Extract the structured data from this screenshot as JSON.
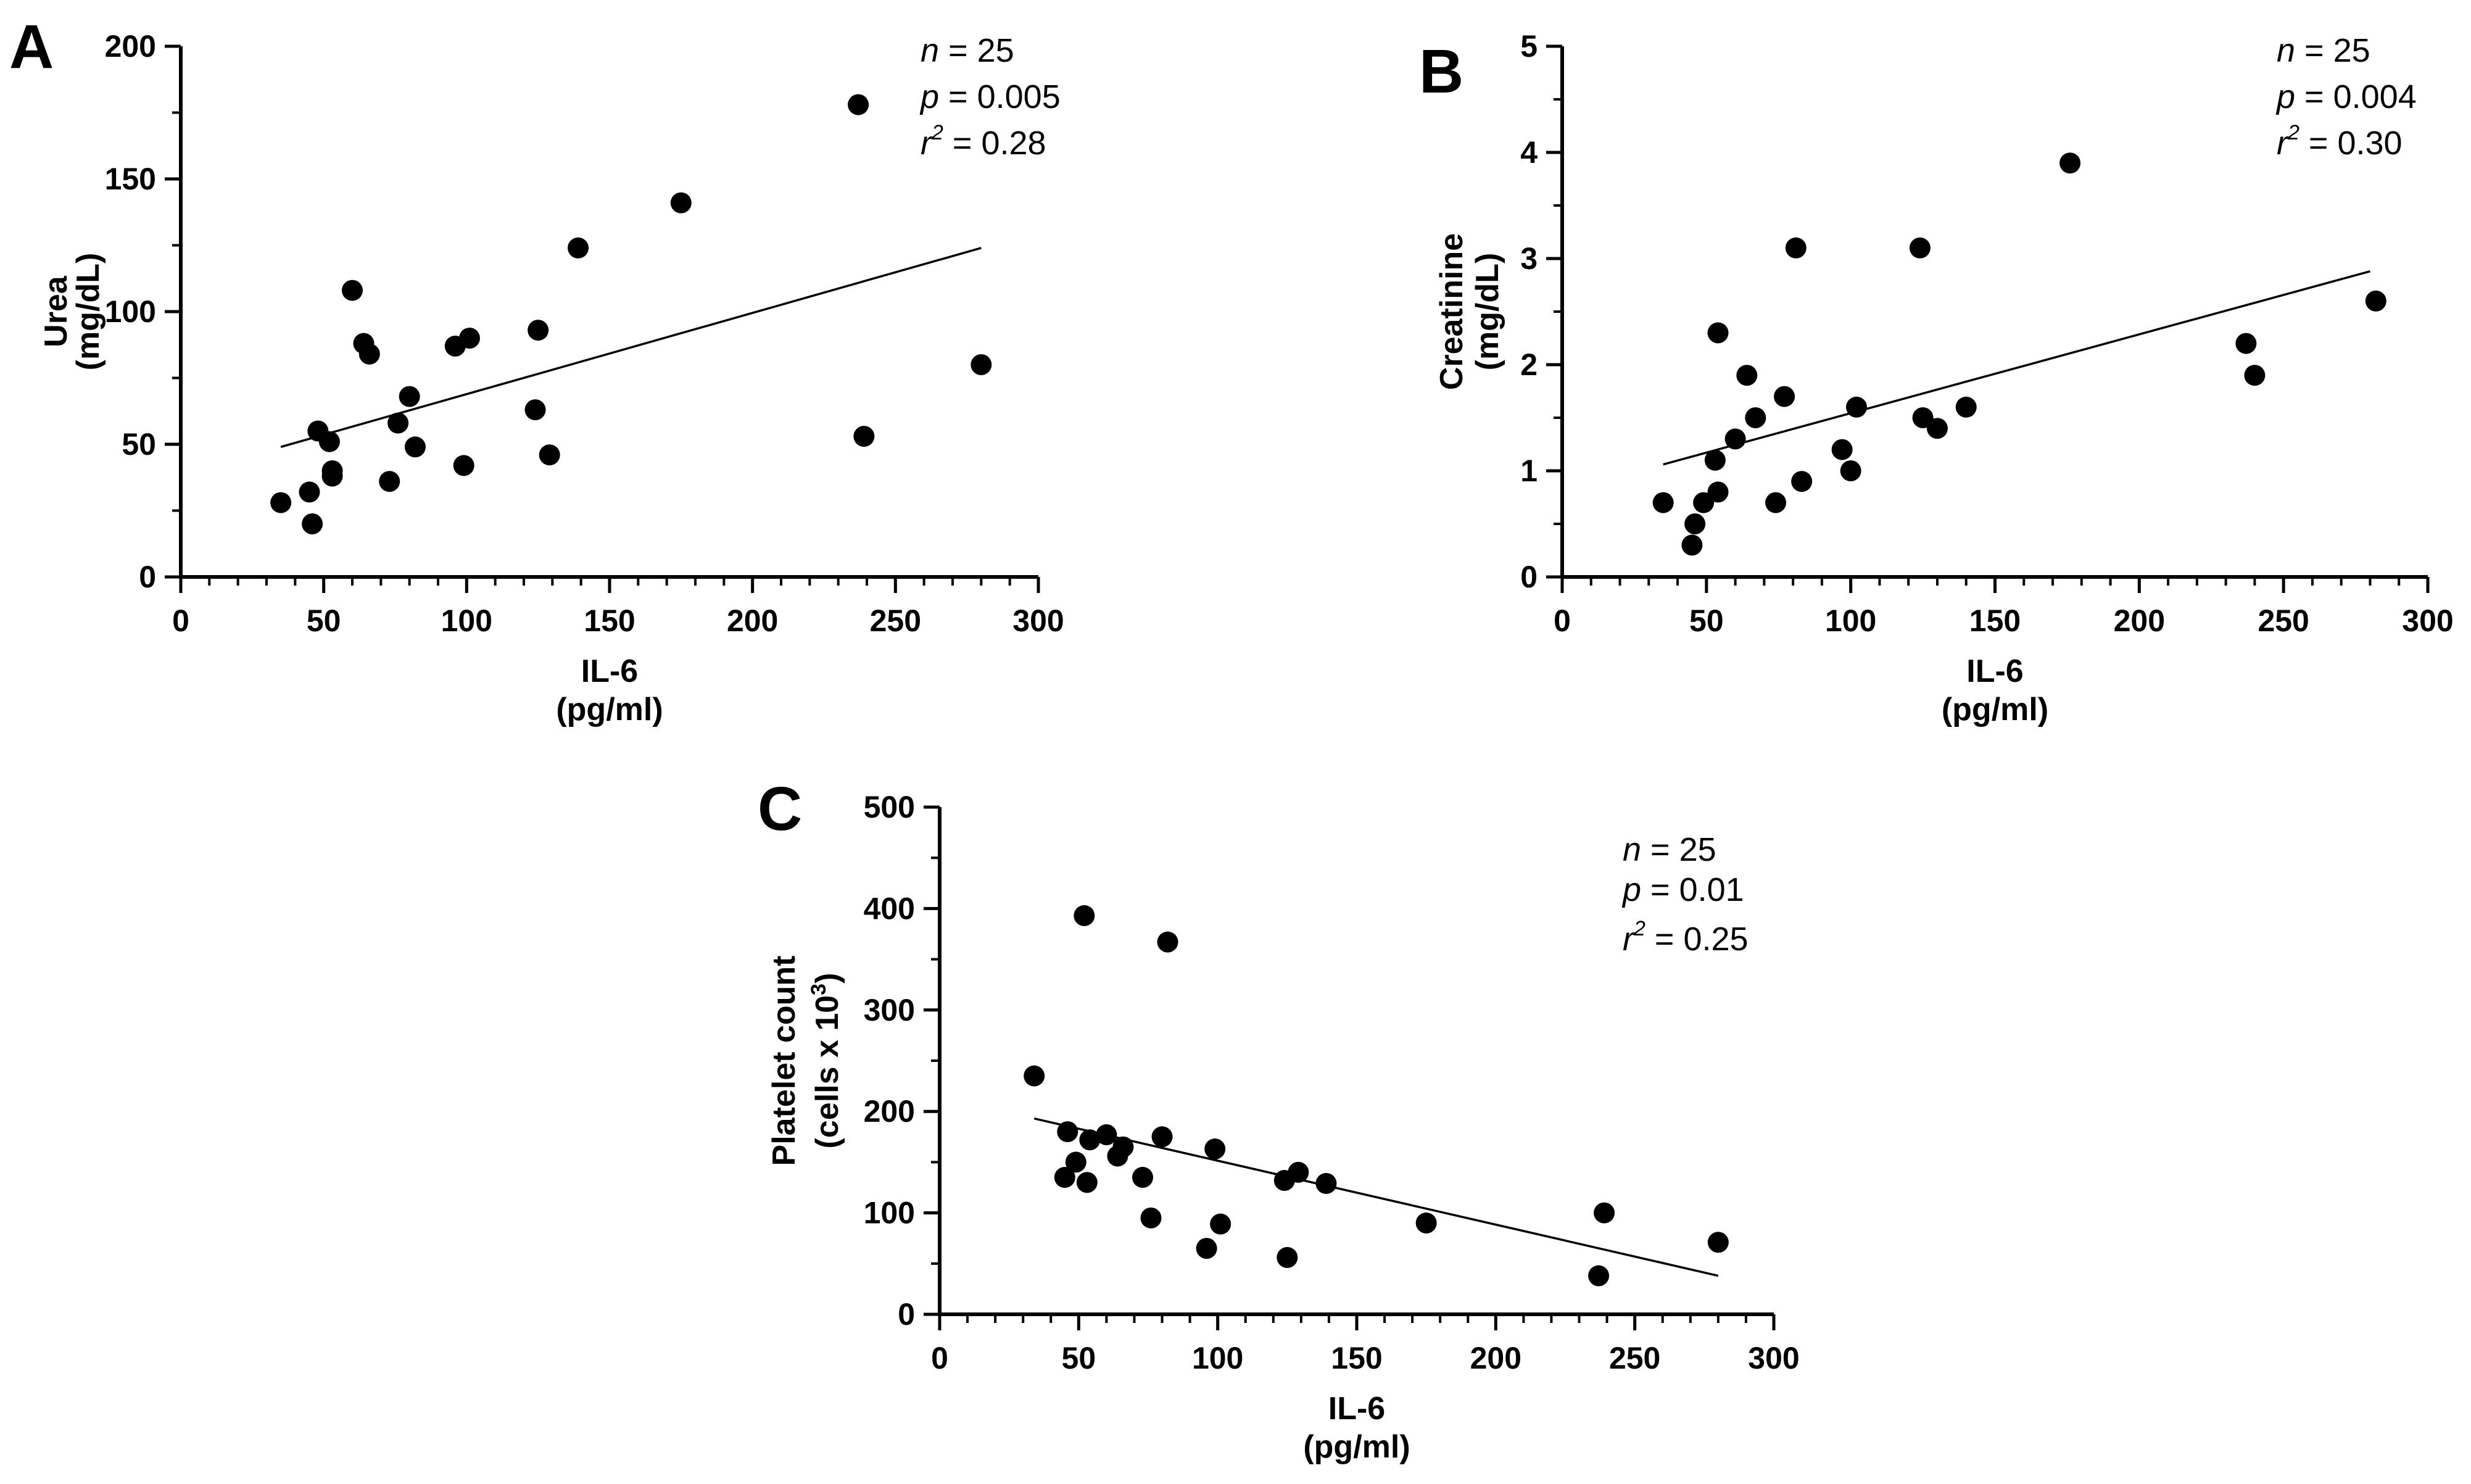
{
  "chart_data": [
    {
      "panel": "A",
      "type": "scatter",
      "xlabel": [
        "IL-6",
        "(pg/ml)"
      ],
      "ylabel": [
        "Urea",
        "(mg/dL)"
      ],
      "xlim": [
        0,
        300
      ],
      "ylim": [
        0,
        200
      ],
      "xticks": [
        0,
        50,
        100,
        150,
        200,
        250,
        300
      ],
      "yticks": [
        0,
        50,
        100,
        150,
        200
      ],
      "stats": {
        "n": "n",
        "n_val": "= 25",
        "p": "p",
        "p_val": "= 0.005",
        "r": "r",
        "r_sup": "2",
        "r_val": "= 0.28"
      },
      "points": [
        {
          "x": 35,
          "y": 28
        },
        {
          "x": 45,
          "y": 32
        },
        {
          "x": 46,
          "y": 20
        },
        {
          "x": 48,
          "y": 55
        },
        {
          "x": 52,
          "y": 51
        },
        {
          "x": 53,
          "y": 40
        },
        {
          "x": 53,
          "y": 38
        },
        {
          "x": 60,
          "y": 108
        },
        {
          "x": 64,
          "y": 88
        },
        {
          "x": 66,
          "y": 84
        },
        {
          "x": 73,
          "y": 36
        },
        {
          "x": 76,
          "y": 58
        },
        {
          "x": 80,
          "y": 68
        },
        {
          "x": 82,
          "y": 49
        },
        {
          "x": 96,
          "y": 87
        },
        {
          "x": 99,
          "y": 42
        },
        {
          "x": 101,
          "y": 90
        },
        {
          "x": 124,
          "y": 63
        },
        {
          "x": 125,
          "y": 93
        },
        {
          "x": 129,
          "y": 46
        },
        {
          "x": 139,
          "y": 124
        },
        {
          "x": 175,
          "y": 141
        },
        {
          "x": 237,
          "y": 178
        },
        {
          "x": 239,
          "y": 53
        },
        {
          "x": 280,
          "y": 80
        }
      ],
      "fit": {
        "x": [
          35,
          280
        ],
        "y": [
          49,
          124
        ]
      }
    },
    {
      "panel": "B",
      "type": "scatter",
      "xlabel": [
        "IL-6",
        "(pg/ml)"
      ],
      "ylabel": [
        "Creatinine",
        "(mg/dL)"
      ],
      "xlim": [
        0,
        300
      ],
      "ylim": [
        0,
        5
      ],
      "xticks": [
        0,
        50,
        100,
        150,
        200,
        250,
        300
      ],
      "yticks": [
        0,
        1,
        2,
        3,
        4,
        5
      ],
      "stats": {
        "n": "n",
        "n_val": "= 25",
        "p": "p",
        "p_val": "= 0.004",
        "r": "r",
        "r_sup": "2",
        "r_val": "= 0.30"
      },
      "points": [
        {
          "x": 35,
          "y": 0.7
        },
        {
          "x": 45,
          "y": 0.3
        },
        {
          "x": 46,
          "y": 0.5
        },
        {
          "x": 49,
          "y": 0.7
        },
        {
          "x": 53,
          "y": 1.1
        },
        {
          "x": 54,
          "y": 2.3
        },
        {
          "x": 54,
          "y": 0.8
        },
        {
          "x": 60,
          "y": 1.3
        },
        {
          "x": 64,
          "y": 1.9
        },
        {
          "x": 67,
          "y": 1.5
        },
        {
          "x": 74,
          "y": 0.7
        },
        {
          "x": 77,
          "y": 1.7
        },
        {
          "x": 81,
          "y": 3.1
        },
        {
          "x": 83,
          "y": 0.9
        },
        {
          "x": 97,
          "y": 1.2
        },
        {
          "x": 100,
          "y": 1.0
        },
        {
          "x": 102,
          "y": 1.6
        },
        {
          "x": 124,
          "y": 3.1
        },
        {
          "x": 125,
          "y": 1.5
        },
        {
          "x": 130,
          "y": 1.4
        },
        {
          "x": 140,
          "y": 1.6
        },
        {
          "x": 176,
          "y": 3.9
        },
        {
          "x": 237,
          "y": 2.2
        },
        {
          "x": 240,
          "y": 1.9
        },
        {
          "x": 282,
          "y": 2.6
        }
      ],
      "fit": {
        "x": [
          35,
          280
        ],
        "y": [
          1.06,
          2.88
        ]
      }
    },
    {
      "panel": "C",
      "type": "scatter",
      "xlabel": [
        "IL-6",
        "(pg/ml)"
      ],
      "ylabel": [
        "Platelet count",
        "(cells x 10",
        "3",
        ")"
      ],
      "xlim": [
        0,
        300
      ],
      "ylim": [
        0,
        500
      ],
      "xticks": [
        0,
        50,
        100,
        150,
        200,
        250,
        300
      ],
      "yticks": [
        0,
        100,
        200,
        300,
        400,
        500
      ],
      "stats": {
        "n": "n",
        "n_val": "= 25",
        "p": "p",
        "p_val": "= 0.01",
        "r": "r",
        "r_sup": "2",
        "r_val": "= 0.25"
      },
      "points": [
        {
          "x": 34,
          "y": 235
        },
        {
          "x": 45,
          "y": 135
        },
        {
          "x": 46,
          "y": 180
        },
        {
          "x": 49,
          "y": 150
        },
        {
          "x": 52,
          "y": 393
        },
        {
          "x": 53,
          "y": 130
        },
        {
          "x": 54,
          "y": 172
        },
        {
          "x": 60,
          "y": 177
        },
        {
          "x": 64,
          "y": 156
        },
        {
          "x": 66,
          "y": 165
        },
        {
          "x": 73,
          "y": 135
        },
        {
          "x": 76,
          "y": 95
        },
        {
          "x": 80,
          "y": 175
        },
        {
          "x": 82,
          "y": 367
        },
        {
          "x": 96,
          "y": 65
        },
        {
          "x": 99,
          "y": 163
        },
        {
          "x": 101,
          "y": 89
        },
        {
          "x": 124,
          "y": 132
        },
        {
          "x": 125,
          "y": 56
        },
        {
          "x": 129,
          "y": 140
        },
        {
          "x": 139,
          "y": 129
        },
        {
          "x": 175,
          "y": 90
        },
        {
          "x": 237,
          "y": 38
        },
        {
          "x": 239,
          "y": 100
        },
        {
          "x": 280,
          "y": 71
        }
      ],
      "fit": {
        "x": [
          34,
          280
        ],
        "y": [
          193,
          38
        ]
      }
    }
  ]
}
